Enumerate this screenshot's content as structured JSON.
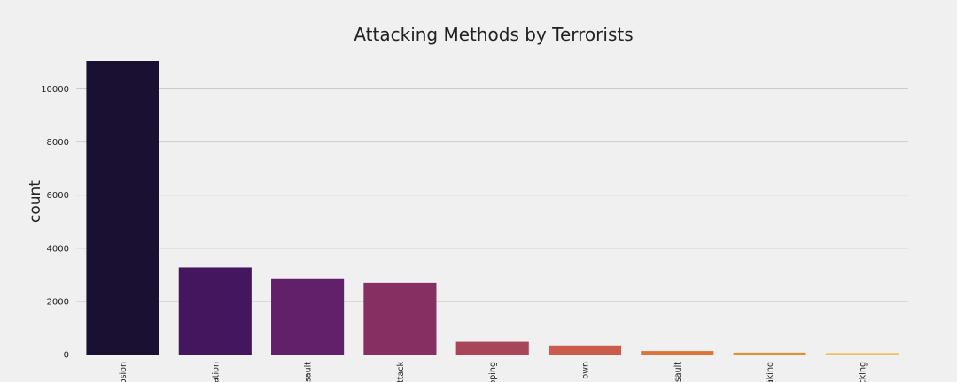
{
  "chart_data": {
    "type": "bar",
    "title": "Attacking Methods by Terrorists",
    "xlabel": "",
    "ylabel": "count",
    "categories": [
      "plosion",
      "ation",
      "sault",
      "ttack",
      "pping",
      "own",
      "sault",
      "aking",
      "cking"
    ],
    "values": [
      11050,
      3280,
      2870,
      2700,
      480,
      340,
      130,
      70,
      55
    ],
    "colors": [
      "#1a1132",
      "#43165d",
      "#62206a",
      "#852f62",
      "#a84558",
      "#cb5c4d",
      "#da7438",
      "#e3932e",
      "#ebc05d"
    ],
    "yticks": [
      0,
      2000,
      4000,
      6000,
      8000,
      10000
    ],
    "ytick_labels": [
      "0",
      "2000",
      "4000",
      "6000",
      "8000",
      "10000"
    ],
    "ylim": [
      0,
      11050
    ],
    "grid": true,
    "legend": "none"
  }
}
